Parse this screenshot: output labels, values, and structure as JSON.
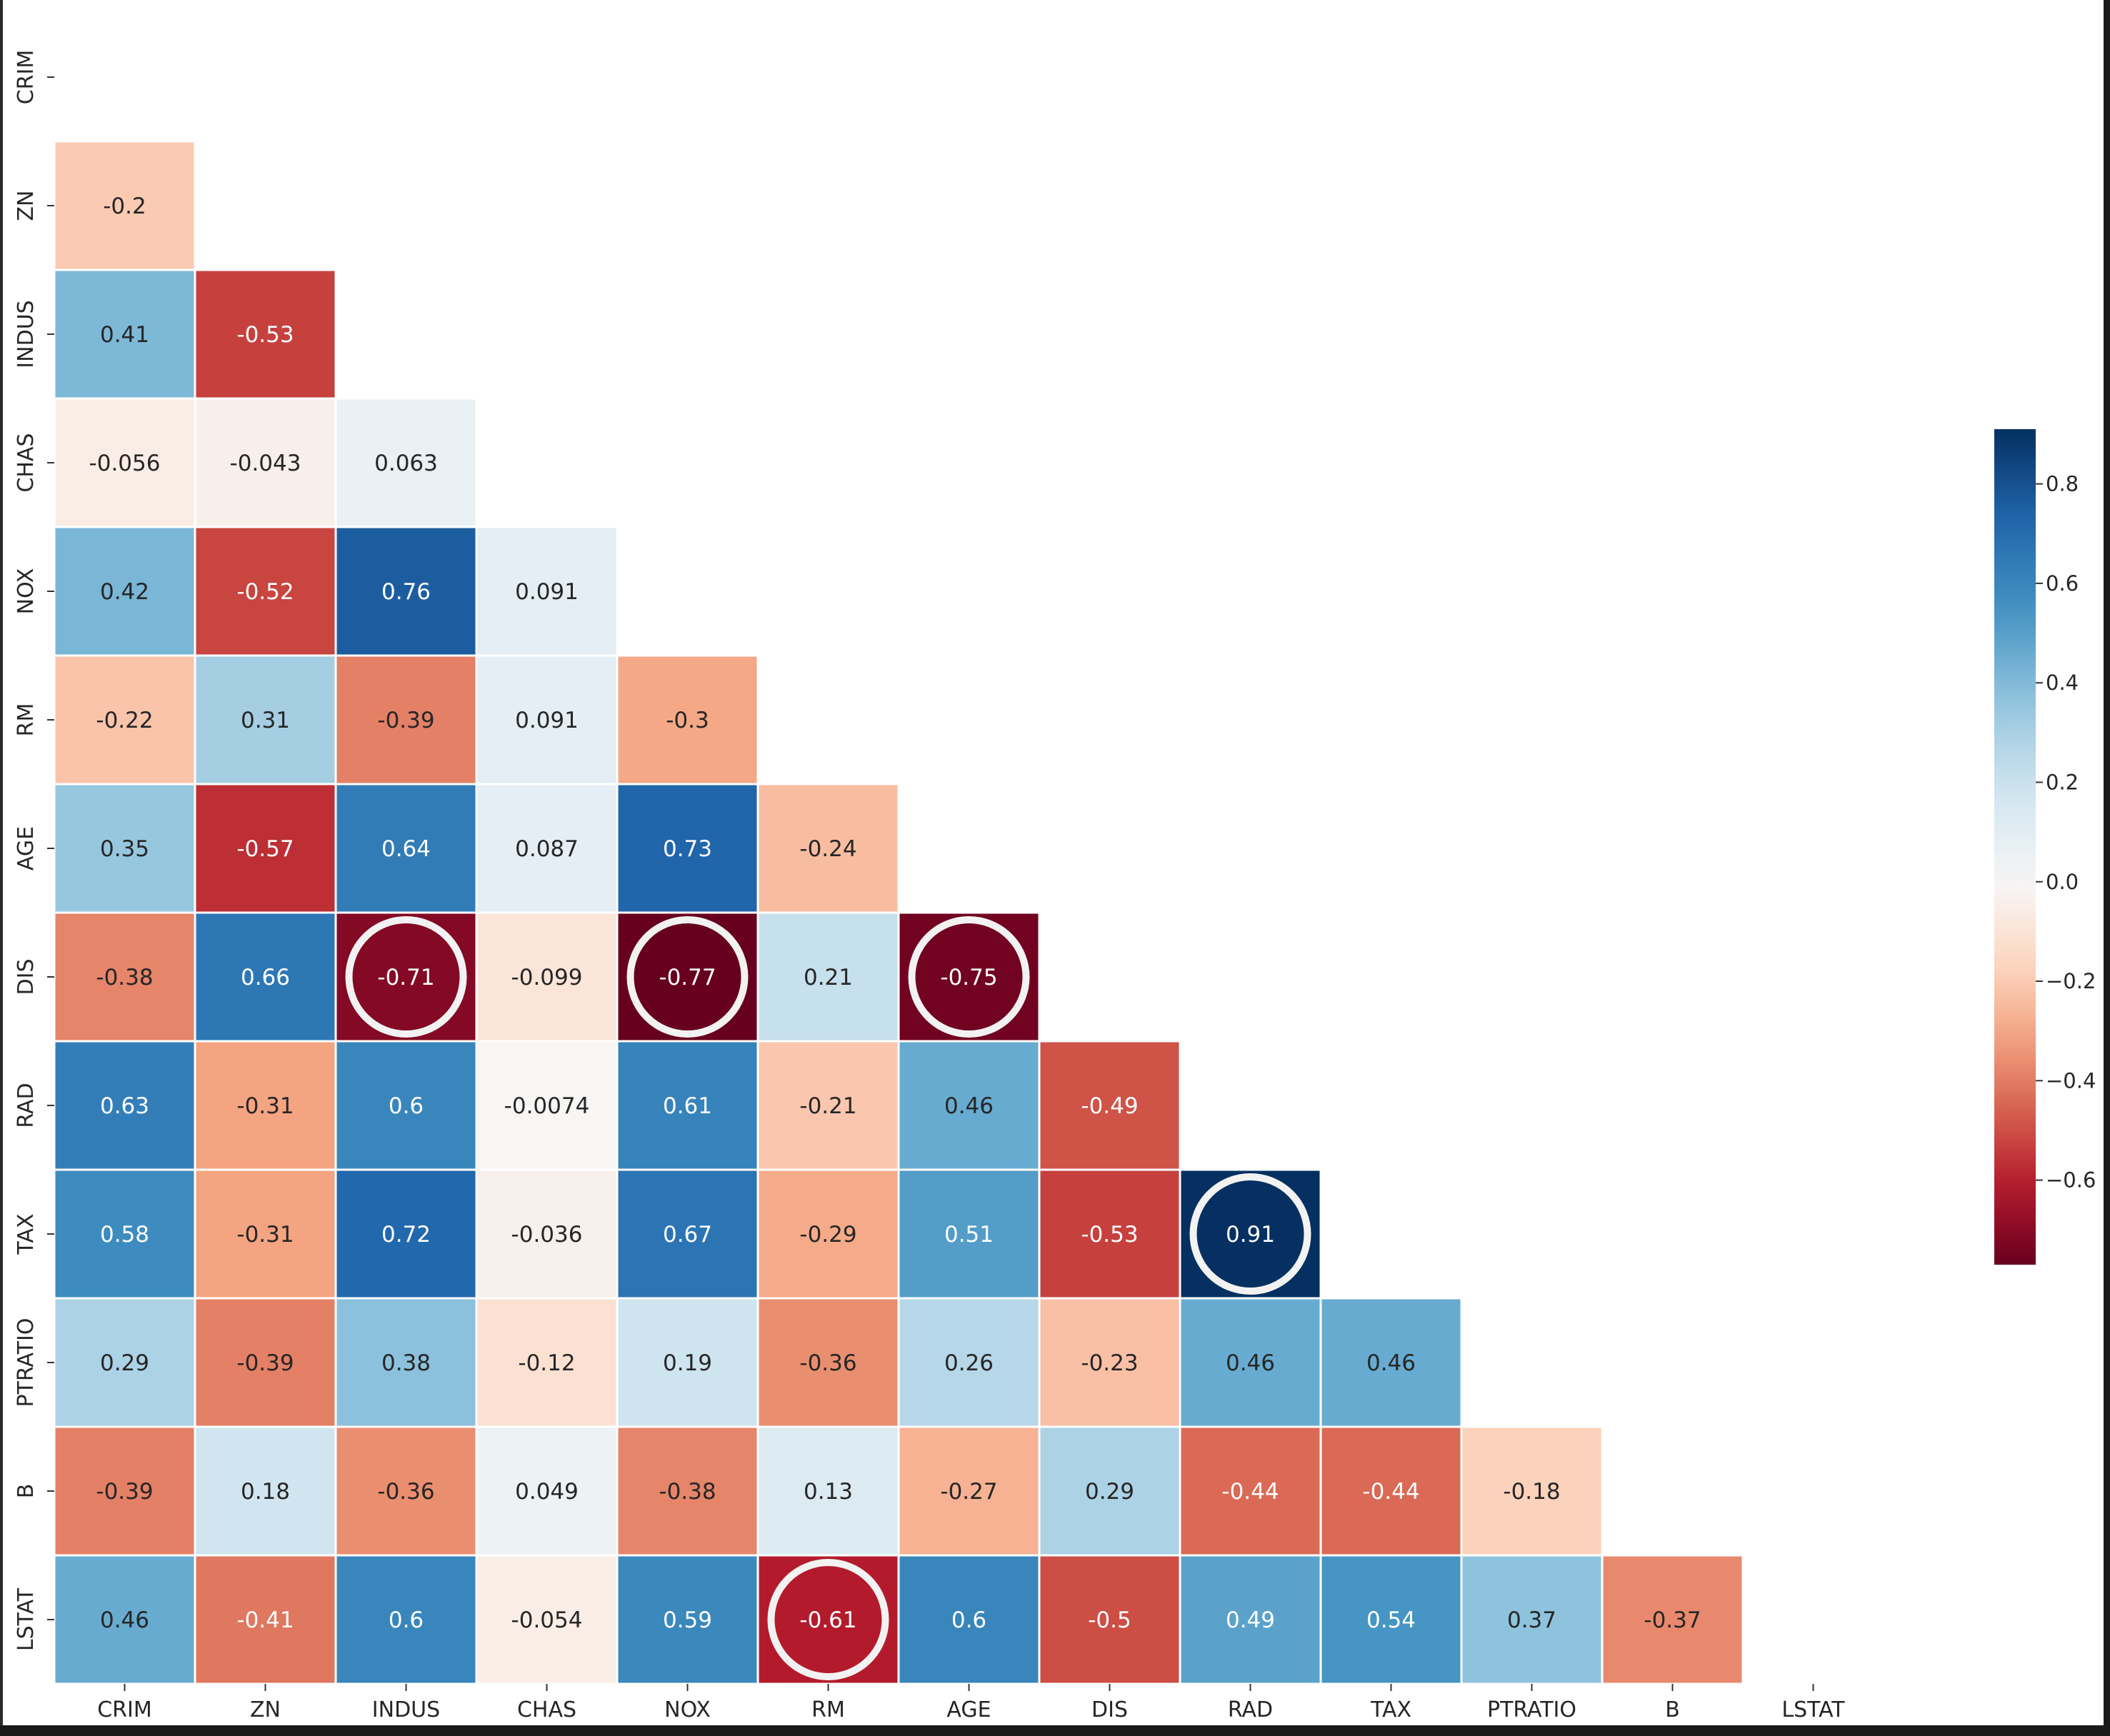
{
  "chart_data": {
    "type": "heatmap",
    "title": "",
    "xlabel": "",
    "ylabel": "",
    "mask": "upper-triangle-including-diagonal",
    "labels": [
      "CRIM",
      "ZN",
      "INDUS",
      "CHAS",
      "NOX",
      "RM",
      "AGE",
      "DIS",
      "RAD",
      "TAX",
      "PTRATIO",
      "B",
      "LSTAT"
    ],
    "matrix": [
      [
        null
      ],
      [
        "-0.2"
      ],
      [
        "0.41",
        "-0.53"
      ],
      [
        "-0.056",
        "-0.043",
        "0.063"
      ],
      [
        "0.42",
        "-0.52",
        "0.76",
        "0.091"
      ],
      [
        "-0.22",
        "0.31",
        "-0.39",
        "0.091",
        "-0.3"
      ],
      [
        "0.35",
        "-0.57",
        "0.64",
        "0.087",
        "0.73",
        "-0.24"
      ],
      [
        "-0.38",
        "0.66",
        "-0.71",
        "-0.099",
        "-0.77",
        "0.21",
        "-0.75"
      ],
      [
        "0.63",
        "-0.31",
        "0.6",
        "-0.0074",
        "0.61",
        "-0.21",
        "0.46",
        "-0.49"
      ],
      [
        "0.58",
        "-0.31",
        "0.72",
        "-0.036",
        "0.67",
        "-0.29",
        "0.51",
        "-0.53",
        "0.91"
      ],
      [
        "0.29",
        "-0.39",
        "0.38",
        "-0.12",
        "0.19",
        "-0.36",
        "0.26",
        "-0.23",
        "0.46",
        "0.46"
      ],
      [
        "-0.39",
        "0.18",
        "-0.36",
        "0.049",
        "-0.38",
        "0.13",
        "-0.27",
        "0.29",
        "-0.44",
        "-0.44",
        "-0.18"
      ],
      [
        "0.46",
        "-0.41",
        "0.6",
        "-0.054",
        "0.59",
        "-0.61",
        "0.6",
        "-0.5",
        "0.49",
        "0.54",
        "0.37",
        "-0.37"
      ]
    ],
    "highlighted_cells": [
      {
        "row": "DIS",
        "col": "INDUS"
      },
      {
        "row": "DIS",
        "col": "NOX"
      },
      {
        "row": "DIS",
        "col": "AGE"
      },
      {
        "row": "TAX",
        "col": "RAD"
      },
      {
        "row": "LSTAT",
        "col": "RM"
      }
    ],
    "colorbar": {
      "colormap": "RdBu",
      "vmin": -0.77,
      "vmax": 0.91,
      "ticks": [
        0.8,
        0.6,
        0.4,
        0.2,
        0.0,
        -0.2,
        -0.4,
        -0.6
      ],
      "tick_labels": [
        "0.8",
        "0.6",
        "0.4",
        "0.2",
        "0.0",
        "−0.2",
        "−0.4",
        "−0.6"
      ]
    },
    "cell_border_color": "#ffffff",
    "highlight_color": "#f2f2f2"
  }
}
